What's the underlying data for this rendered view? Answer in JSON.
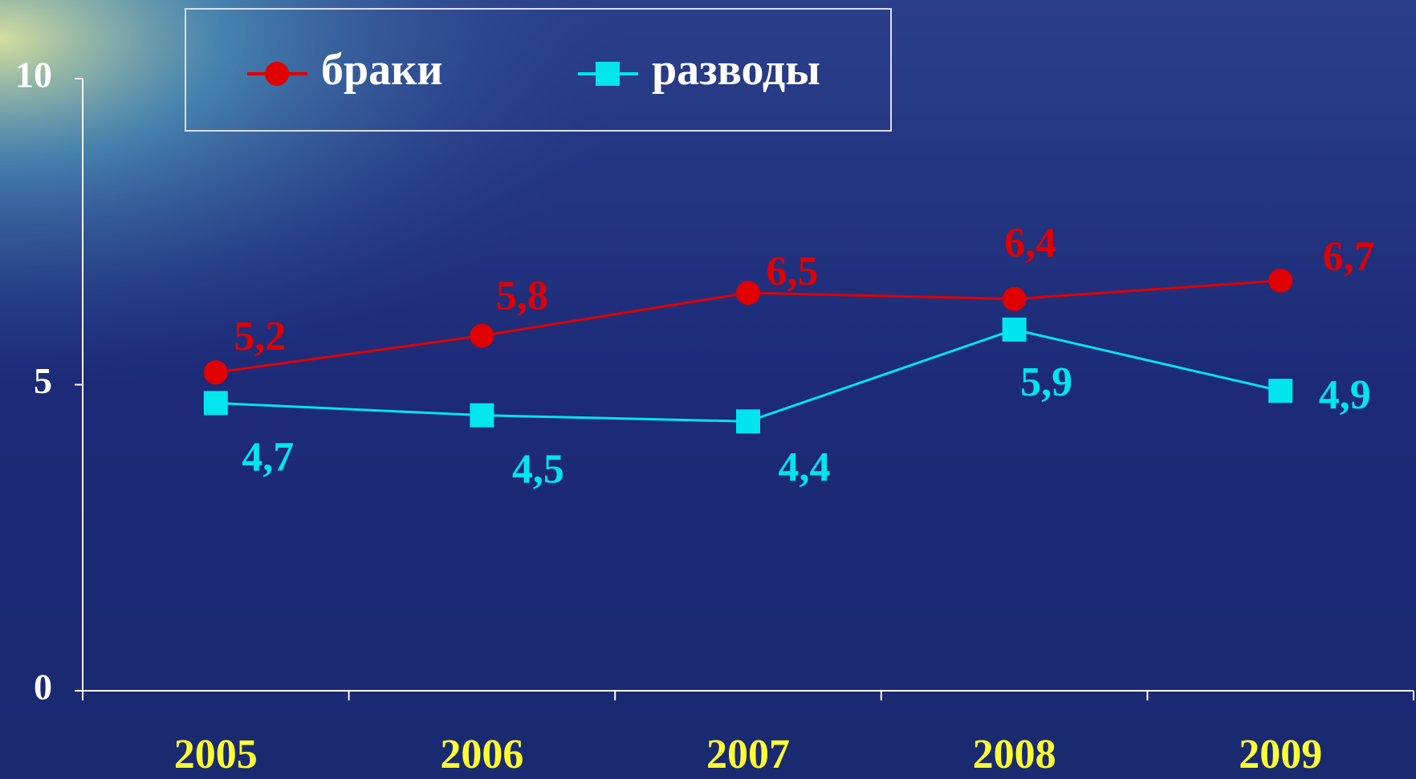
{
  "chart_data": {
    "type": "line",
    "categories": [
      "2005",
      "2006",
      "2007",
      "2008",
      "2009"
    ],
    "series": [
      {
        "name": "браки",
        "color": "#e00000",
        "marker": "circle",
        "values": [
          5.2,
          5.8,
          6.5,
          6.4,
          6.7
        ],
        "value_labels": [
          "5,2",
          "5,8",
          "6,5",
          "6,4",
          "6,7"
        ]
      },
      {
        "name": "разводы",
        "color": "#00e5ee",
        "marker": "square",
        "values": [
          4.7,
          4.5,
          4.4,
          5.9,
          4.9
        ],
        "value_labels": [
          "4,7",
          "4,5",
          "4,4",
          "5,9",
          "4,9"
        ]
      }
    ],
    "ylim": [
      0,
      10
    ],
    "yticks": [
      0,
      5,
      10
    ],
    "grid": false,
    "legend": "top"
  }
}
